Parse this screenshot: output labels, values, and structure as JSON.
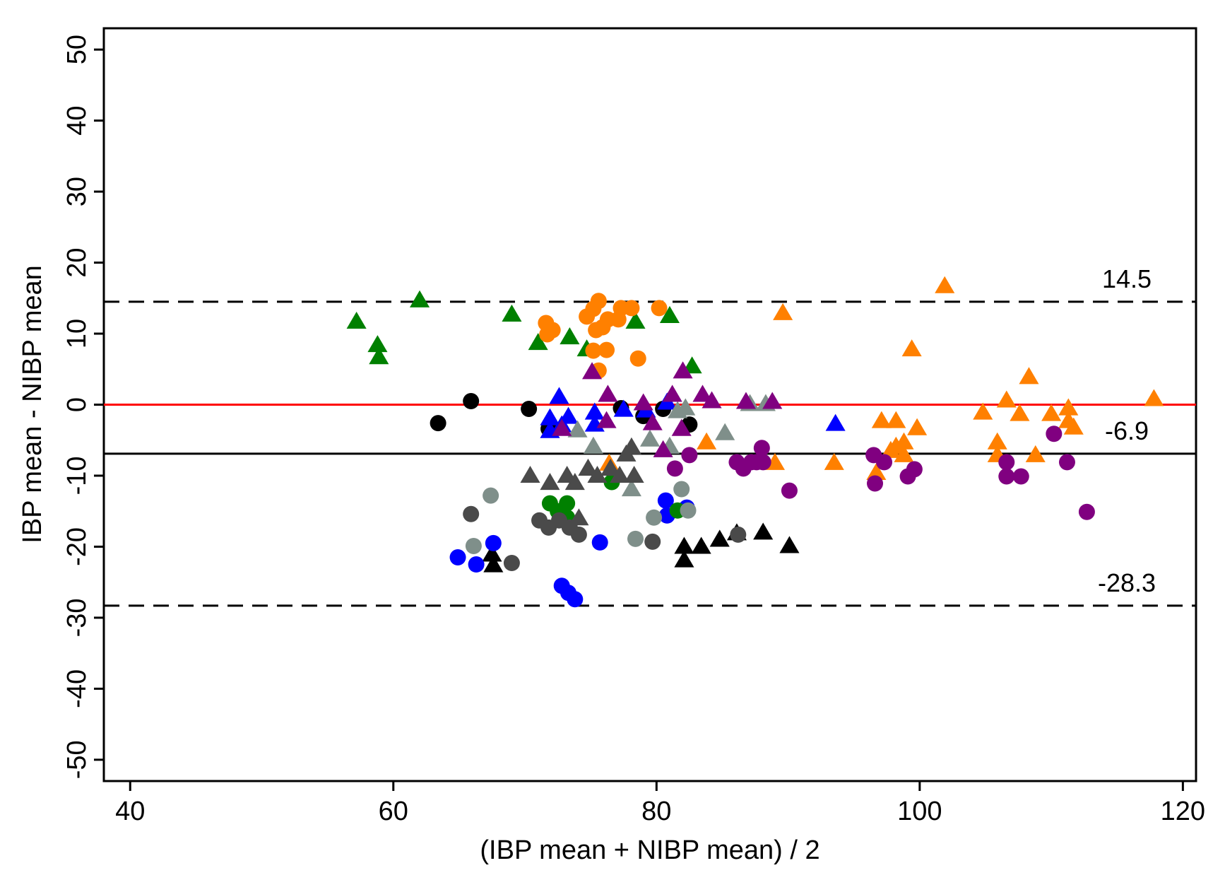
{
  "chart_data": {
    "type": "scatter",
    "title": "",
    "xlabel": "(IBP mean + NIBP mean) / 2",
    "ylabel": "IBP mean - NIBP mean",
    "xlim": [
      38,
      121
    ],
    "ylim": [
      -53,
      53
    ],
    "xticks": [
      40,
      60,
      80,
      100,
      120
    ],
    "yticks": [
      50,
      40,
      30,
      20,
      10,
      0,
      -10,
      -20,
      -30,
      -40,
      -50
    ],
    "grid": false,
    "reference_lines": [
      {
        "name": "upper-limit-of-agreement",
        "y": 14.5,
        "label": "14.5",
        "style": "dashed",
        "color": "#000000"
      },
      {
        "name": "mean-difference",
        "y": -6.9,
        "label": "-6.9",
        "style": "solid",
        "color": "#000000"
      },
      {
        "name": "lower-limit-of-agreement",
        "y": -28.3,
        "label": "-28.3",
        "style": "dashed",
        "color": "#000000"
      },
      {
        "name": "zero-line",
        "y": 0,
        "label": "",
        "style": "solid",
        "color": "#ff0000"
      }
    ],
    "series": [
      {
        "name": "green-triangle",
        "color": "#008000",
        "marker": "triangle",
        "points": [
          [
            57.2,
            11.8
          ],
          [
            58.8,
            8.5
          ],
          [
            58.9,
            6.8
          ],
          [
            62.0,
            14.8
          ],
          [
            69.0,
            12.8
          ],
          [
            71.0,
            8.8
          ],
          [
            73.4,
            9.6
          ],
          [
            74.7,
            7.9
          ],
          [
            78.4,
            11.8
          ],
          [
            81.0,
            12.6
          ],
          [
            82.7,
            5.5
          ]
        ]
      },
      {
        "name": "orange-circle",
        "color": "#ff8000",
        "marker": "circle",
        "points": [
          [
            71.6,
            11.5
          ],
          [
            72.1,
            10.5
          ],
          [
            71.7,
            9.9
          ],
          [
            74.7,
            12.4
          ],
          [
            75.2,
            13.5
          ],
          [
            75.6,
            14.6
          ],
          [
            75.9,
            10.9
          ],
          [
            76.3,
            12.0
          ],
          [
            75.4,
            10.5
          ],
          [
            75.2,
            7.6
          ],
          [
            76.2,
            7.7
          ],
          [
            75.6,
            4.8
          ],
          [
            77.1,
            12.0
          ],
          [
            77.3,
            13.6
          ],
          [
            78.1,
            13.6
          ],
          [
            80.2,
            13.6
          ],
          [
            78.6,
            6.5
          ]
        ]
      },
      {
        "name": "orange-triangle",
        "color": "#ff8000",
        "marker": "triangle",
        "points": [
          [
            89.6,
            13.0
          ],
          [
            101.9,
            16.8
          ],
          [
            99.4,
            7.9
          ],
          [
            108.3,
            4.0
          ],
          [
            117.8,
            0.9
          ],
          [
            104.8,
            -1.0
          ],
          [
            106.6,
            0.7
          ],
          [
            107.6,
            -1.2
          ],
          [
            110.0,
            -1.2
          ],
          [
            111.3,
            -0.4
          ],
          [
            111.3,
            -2.2
          ],
          [
            111.7,
            -3.1
          ],
          [
            97.1,
            -2.2
          ],
          [
            98.2,
            -2.2
          ],
          [
            99.8,
            -3.2
          ],
          [
            98.8,
            -5.2
          ],
          [
            98.2,
            -5.8
          ],
          [
            97.8,
            -6.4
          ],
          [
            98.8,
            -7.0
          ],
          [
            96.7,
            -9.5
          ],
          [
            105.9,
            -5.2
          ],
          [
            105.9,
            -7.0
          ],
          [
            108.8,
            -7.0
          ],
          [
            89.0,
            -8.1
          ],
          [
            93.5,
            -8.1
          ],
          [
            83.8,
            -5.2
          ],
          [
            76.4,
            -8.2
          ]
        ]
      },
      {
        "name": "black-circle",
        "color": "#000000",
        "marker": "circle",
        "points": [
          [
            63.4,
            -2.6
          ],
          [
            65.9,
            0.5
          ],
          [
            70.3,
            -0.6
          ],
          [
            71.8,
            -3.4
          ],
          [
            77.3,
            -0.5
          ],
          [
            79.0,
            -1.6
          ],
          [
            80.5,
            -0.6
          ],
          [
            82.5,
            -2.8
          ]
        ]
      },
      {
        "name": "black-triangle",
        "color": "#000000",
        "marker": "triangle",
        "points": [
          [
            67.5,
            -21.0
          ],
          [
            67.6,
            -22.5
          ],
          [
            82.1,
            -19.9
          ],
          [
            82.1,
            -21.8
          ],
          [
            83.4,
            -19.9
          ],
          [
            84.8,
            -18.9
          ],
          [
            86.1,
            -18.0
          ],
          [
            88.1,
            -17.9
          ],
          [
            90.1,
            -19.8
          ]
        ]
      },
      {
        "name": "blue-circle",
        "color": "#0000ff",
        "marker": "circle",
        "points": [
          [
            64.9,
            -21.5
          ],
          [
            66.3,
            -22.5
          ],
          [
            67.6,
            -19.5
          ],
          [
            72.8,
            -25.5
          ],
          [
            73.3,
            -26.5
          ],
          [
            73.8,
            -27.4
          ],
          [
            75.7,
            -19.4
          ],
          [
            80.7,
            -13.5
          ],
          [
            80.8,
            -15.6
          ],
          [
            82.3,
            -14.5
          ]
        ]
      },
      {
        "name": "blue-triangle",
        "color": "#0000ff",
        "marker": "triangle",
        "points": [
          [
            72.6,
            1.2
          ],
          [
            71.9,
            -1.8
          ],
          [
            72.8,
            -2.8
          ],
          [
            73.3,
            -1.6
          ],
          [
            71.9,
            -3.6
          ],
          [
            75.3,
            -1.0
          ],
          [
            75.3,
            -2.7
          ],
          [
            77.5,
            -0.6
          ],
          [
            79.2,
            -0.7
          ],
          [
            80.8,
            0.4
          ],
          [
            93.6,
            -2.6
          ]
        ]
      },
      {
        "name": "green-circle",
        "color": "#008000",
        "marker": "circle",
        "points": [
          [
            71.9,
            -13.9
          ],
          [
            72.5,
            -15.0
          ],
          [
            73.2,
            -13.9
          ],
          [
            73.2,
            -15.9
          ],
          [
            76.6,
            -10.9
          ],
          [
            81.6,
            -14.9
          ]
        ]
      },
      {
        "name": "gray-circle",
        "color": "#7f8f8a",
        "marker": "circle",
        "points": [
          [
            67.4,
            -12.8
          ],
          [
            66.1,
            -19.9
          ],
          [
            78.4,
            -18.9
          ],
          [
            79.8,
            -15.9
          ],
          [
            81.9,
            -11.9
          ],
          [
            82.4,
            -14.9
          ]
        ]
      },
      {
        "name": "gray-triangle",
        "color": "#7f8f8a",
        "marker": "triangle",
        "points": [
          [
            74.0,
            -3.5
          ],
          [
            75.2,
            -5.8
          ],
          [
            78.1,
            -11.8
          ],
          [
            79.5,
            -4.8
          ],
          [
            81.0,
            -5.8
          ],
          [
            81.6,
            -0.8
          ],
          [
            82.2,
            -0.4
          ],
          [
            85.2,
            -3.9
          ],
          [
            87.1,
            0.2
          ],
          [
            88.3,
            0.2
          ]
        ]
      },
      {
        "name": "dark-gray-circle",
        "color": "#4a4a4a",
        "marker": "circle",
        "points": [
          [
            65.9,
            -15.4
          ],
          [
            71.1,
            -16.3
          ],
          [
            71.8,
            -17.3
          ],
          [
            72.6,
            -16.3
          ],
          [
            73.4,
            -17.3
          ],
          [
            74.1,
            -18.3
          ],
          [
            79.7,
            -19.3
          ],
          [
            86.2,
            -18.3
          ],
          [
            69.0,
            -22.3
          ]
        ]
      },
      {
        "name": "dark-gray-triangle",
        "color": "#4a4a4a",
        "marker": "triangle",
        "points": [
          [
            70.4,
            -9.9
          ],
          [
            71.9,
            -10.9
          ],
          [
            73.2,
            -9.9
          ],
          [
            73.8,
            -10.9
          ],
          [
            74.8,
            -8.9
          ],
          [
            75.5,
            -9.9
          ],
          [
            76.5,
            -8.9
          ],
          [
            77.2,
            -9.9
          ],
          [
            77.7,
            -6.9
          ],
          [
            78.1,
            -5.9
          ],
          [
            78.3,
            -9.9
          ],
          [
            74.1,
            -15.9
          ]
        ]
      },
      {
        "name": "purple-circle",
        "color": "#800080",
        "marker": "circle",
        "points": [
          [
            81.4,
            -9.0
          ],
          [
            82.5,
            -7.1
          ],
          [
            86.1,
            -8.1
          ],
          [
            86.6,
            -9.0
          ],
          [
            87.2,
            -8.1
          ],
          [
            87.6,
            -8.1
          ],
          [
            88.0,
            -6.1
          ],
          [
            88.1,
            -8.1
          ],
          [
            90.1,
            -12.1
          ],
          [
            96.5,
            -7.1
          ],
          [
            96.6,
            -11.1
          ],
          [
            97.3,
            -8.1
          ],
          [
            99.1,
            -10.1
          ],
          [
            99.6,
            -9.1
          ],
          [
            106.6,
            -8.1
          ],
          [
            106.6,
            -10.1
          ],
          [
            107.7,
            -10.1
          ],
          [
            110.2,
            -4.1
          ],
          [
            111.2,
            -8.1
          ],
          [
            112.7,
            -15.1
          ]
        ]
      },
      {
        "name": "purple-triangle",
        "color": "#800080",
        "marker": "triangle",
        "points": [
          [
            75.1,
            4.7
          ],
          [
            76.3,
            1.5
          ],
          [
            76.2,
            -2.2
          ],
          [
            72.8,
            -3.3
          ],
          [
            79.0,
            0.3
          ],
          [
            79.7,
            -2.5
          ],
          [
            80.5,
            -6.3
          ],
          [
            81.2,
            1.5
          ],
          [
            82.0,
            4.8
          ],
          [
            81.9,
            -3.3
          ],
          [
            83.5,
            1.5
          ],
          [
            84.2,
            0.6
          ],
          [
            86.8,
            0.5
          ],
          [
            88.8,
            0.5
          ]
        ]
      }
    ]
  }
}
